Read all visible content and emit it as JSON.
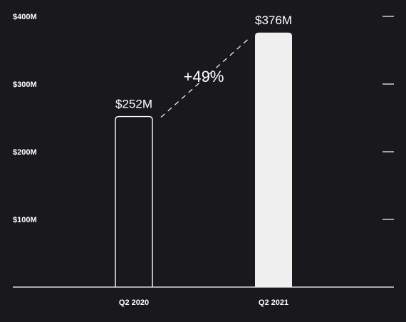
{
  "chart_data": {
    "type": "bar",
    "categories": [
      "Q2 2020",
      "Q2 2021"
    ],
    "values": [
      252,
      376
    ],
    "value_labels": [
      "$252M",
      "$376M"
    ],
    "bar_styles": [
      "outline",
      "filled"
    ],
    "y_ticks": [
      {
        "value": 100,
        "label": "$100M"
      },
      {
        "value": 200,
        "label": "$200M"
      },
      {
        "value": 300,
        "label": "$300M"
      },
      {
        "value": 400,
        "label": "$400M"
      }
    ],
    "ylim": [
      0,
      400
    ],
    "grid": false,
    "annotation": {
      "text": "+49%",
      "style": "dashed-connector"
    },
    "colors": {
      "background": "#19181c",
      "text": "#ffffff",
      "bar_fill": "#efefef",
      "bar_outline": "#ffffff",
      "axis": "#ffffff"
    }
  }
}
